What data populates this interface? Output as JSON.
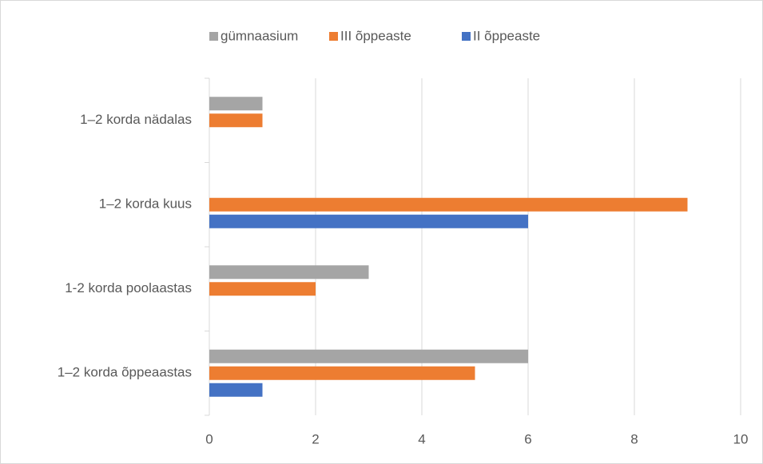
{
  "chart_data": {
    "type": "hbar",
    "categories": [
      "1–2 korda nädalas",
      "1–2 korda kuus",
      "1-2 korda poolaastas",
      "1–2 korda õppeaastas"
    ],
    "series": [
      {
        "name": "gümnaasium",
        "color": "#a5a5a5",
        "values": [
          1,
          0,
          3,
          6
        ]
      },
      {
        "name": "III õppeaste",
        "color": "#ed7d31",
        "values": [
          1,
          9,
          2,
          5
        ]
      },
      {
        "name": "II õppeaste",
        "color": "#4472c4",
        "values": [
          0,
          6,
          0,
          1
        ]
      }
    ],
    "xlim": [
      0,
      10
    ],
    "xticks": [
      0,
      2,
      4,
      6,
      8,
      10
    ],
    "grid": true,
    "legend": "top"
  }
}
